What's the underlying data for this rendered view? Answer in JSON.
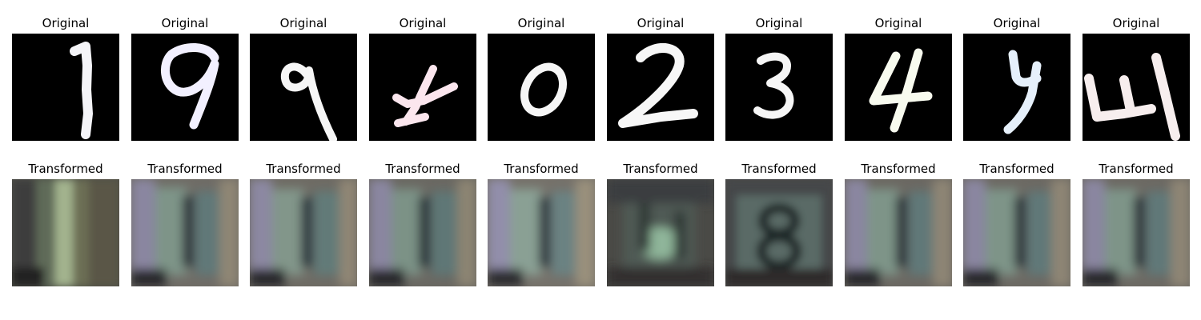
{
  "figure": {
    "columns": [
      {
        "original_title": "Original",
        "transformed_title": "Transformed",
        "original_glyph": "1",
        "transformed_glyph": "1",
        "ink": "#f4f4f8"
      },
      {
        "original_title": "Original",
        "transformed_title": "Transformed",
        "original_glyph": "9",
        "transformed_glyph": "1",
        "ink": "#f2f0ff"
      },
      {
        "original_title": "Original",
        "transformed_title": "Transformed",
        "original_glyph": "9",
        "transformed_glyph": "1",
        "ink": "#f6f6f6"
      },
      {
        "original_title": "Original",
        "transformed_title": "Transformed",
        "original_glyph": "4",
        "transformed_glyph": "1",
        "ink": "#fbe6ee"
      },
      {
        "original_title": "Original",
        "transformed_title": "Transformed",
        "original_glyph": "0",
        "transformed_glyph": "1",
        "ink": "#f6f6f6"
      },
      {
        "original_title": "Original",
        "transformed_title": "Transformed",
        "original_glyph": "2",
        "transformed_glyph": "5",
        "ink": "#f7f7f7"
      },
      {
        "original_title": "Original",
        "transformed_title": "Transformed",
        "original_glyph": "3",
        "transformed_glyph": "8",
        "ink": "#f6f6f6"
      },
      {
        "original_title": "Original",
        "transformed_title": "Transformed",
        "original_glyph": "4",
        "transformed_glyph": "1",
        "ink": "#f8fbef"
      },
      {
        "original_title": "Original",
        "transformed_title": "Transformed",
        "original_glyph": "y",
        "transformed_glyph": "1",
        "ink": "#e6f0fb"
      },
      {
        "original_title": "Original",
        "transformed_title": "Transformed",
        "original_glyph": "4",
        "transformed_glyph": "1",
        "ink": "#f7eeee"
      }
    ]
  }
}
